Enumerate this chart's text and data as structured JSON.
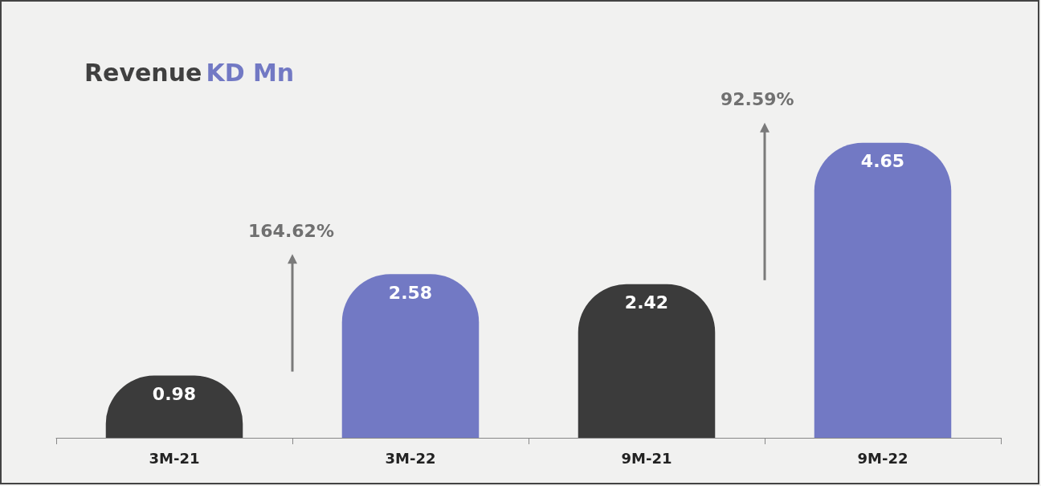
{
  "chart_data": {
    "type": "bar",
    "title": "Revenue KD Mn",
    "categories": [
      "3M-21",
      "3M-22",
      "9M-21",
      "9M-22"
    ],
    "values": [
      0.98,
      2.58,
      2.42,
      4.65
    ],
    "colors": [
      "#3b3b3b",
      "#7279c4",
      "#3b3b3b",
      "#7279c4"
    ],
    "data_labels": true,
    "annotations": [
      "164.62%",
      "92.59%"
    ]
  }
}
